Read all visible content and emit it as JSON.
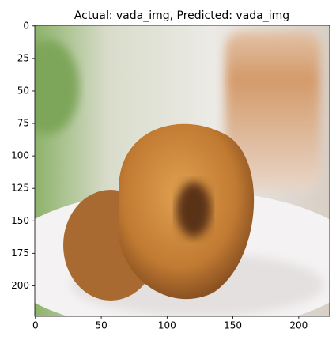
{
  "chart_data": {
    "type": "image",
    "title": "Actual: vada_img, Predicted: vada_img",
    "xlim": [
      -0.5,
      223.5
    ],
    "ylim": [
      223.5,
      -0.5
    ],
    "xticks": [
      0,
      50,
      100,
      150,
      200
    ],
    "yticks": [
      0,
      25,
      50,
      75,
      100,
      125,
      150,
      175,
      200
    ]
  }
}
